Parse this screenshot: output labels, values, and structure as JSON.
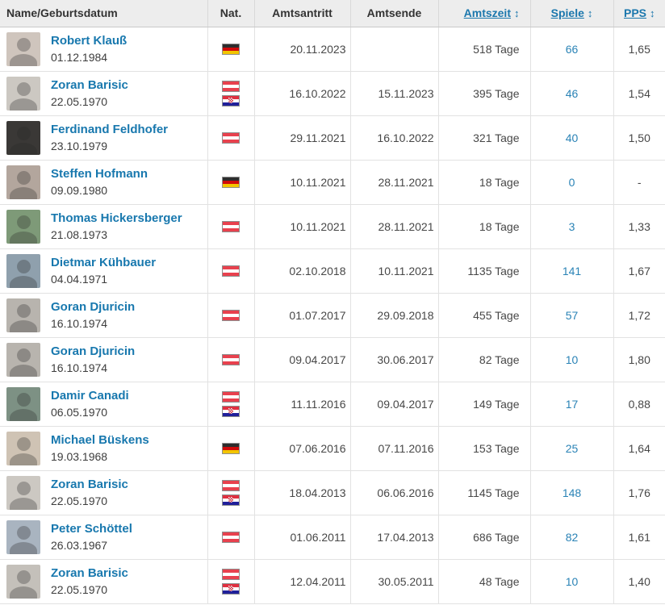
{
  "table": {
    "sort_icon": "↕",
    "columns": [
      {
        "key": "name",
        "label": "Name/Geburtsdatum",
        "sortable": false
      },
      {
        "key": "nat",
        "label": "Nat.",
        "sortable": false
      },
      {
        "key": "start",
        "label": "Amtsantritt",
        "sortable": false
      },
      {
        "key": "end",
        "label": "Amtsende",
        "sortable": false
      },
      {
        "key": "duration",
        "label": "Amtszeit",
        "sortable": true
      },
      {
        "key": "games",
        "label": "Spiele",
        "sortable": true
      },
      {
        "key": "pps",
        "label": "PPS",
        "sortable": true
      }
    ],
    "rows": [
      {
        "name": "Robert Klauß",
        "birthdate": "01.12.1984",
        "nationalities": [
          "germany"
        ],
        "start": "20.11.2023",
        "end": "",
        "duration": "518 Tage",
        "games": "66",
        "pps": "1,65",
        "photo_bg": "#cfc5bd"
      },
      {
        "name": "Zoran Barisic",
        "birthdate": "22.05.1970",
        "nationalities": [
          "austria",
          "croatia"
        ],
        "start": "16.10.2022",
        "end": "15.11.2023",
        "duration": "395 Tage",
        "games": "46",
        "pps": "1,54",
        "photo_bg": "#ccc8c2"
      },
      {
        "name": "Ferdinand Feldhofer",
        "birthdate": "23.10.1979",
        "nationalities": [
          "austria"
        ],
        "start": "29.11.2021",
        "end": "16.10.2022",
        "duration": "321 Tage",
        "games": "40",
        "pps": "1,50",
        "photo_bg": "#3a3836"
      },
      {
        "name": "Steffen Hofmann",
        "birthdate": "09.09.1980",
        "nationalities": [
          "germany"
        ],
        "start": "10.11.2021",
        "end": "28.11.2021",
        "duration": "18 Tage",
        "games": "0",
        "pps": "-",
        "photo_bg": "#b3a69d"
      },
      {
        "name": "Thomas Hickersberger",
        "birthdate": "21.08.1973",
        "nationalities": [
          "austria"
        ],
        "start": "10.11.2021",
        "end": "28.11.2021",
        "duration": "18 Tage",
        "games": "3",
        "pps": "1,33",
        "photo_bg": "#7e9a78"
      },
      {
        "name": "Dietmar Kühbauer",
        "birthdate": "04.04.1971",
        "nationalities": [
          "austria"
        ],
        "start": "02.10.2018",
        "end": "10.11.2021",
        "duration": "1135 Tage",
        "games": "141",
        "pps": "1,67",
        "photo_bg": "#8fa0ad"
      },
      {
        "name": "Goran Djuricin",
        "birthdate": "16.10.1974",
        "nationalities": [
          "austria"
        ],
        "start": "01.07.2017",
        "end": "29.09.2018",
        "duration": "455 Tage",
        "games": "57",
        "pps": "1,72",
        "photo_bg": "#b8b4ae"
      },
      {
        "name": "Goran Djuricin",
        "birthdate": "16.10.1974",
        "nationalities": [
          "austria"
        ],
        "start": "09.04.2017",
        "end": "30.06.2017",
        "duration": "82 Tage",
        "games": "10",
        "pps": "1,80",
        "photo_bg": "#b8b4ae"
      },
      {
        "name": "Damir Canadi",
        "birthdate": "06.05.1970",
        "nationalities": [
          "austria",
          "croatia"
        ],
        "start": "11.11.2016",
        "end": "09.04.2017",
        "duration": "149 Tage",
        "games": "17",
        "pps": "0,88",
        "photo_bg": "#7d9184"
      },
      {
        "name": "Michael Büskens",
        "birthdate": "19.03.1968",
        "nationalities": [
          "germany"
        ],
        "start": "07.06.2016",
        "end": "07.11.2016",
        "duration": "153 Tage",
        "games": "25",
        "pps": "1,64",
        "photo_bg": "#cfc3b4"
      },
      {
        "name": "Zoran Barisic",
        "birthdate": "22.05.1970",
        "nationalities": [
          "austria",
          "croatia"
        ],
        "start": "18.04.2013",
        "end": "06.06.2016",
        "duration": "1145 Tage",
        "games": "148",
        "pps": "1,76",
        "photo_bg": "#ccc8c2"
      },
      {
        "name": "Peter Schöttel",
        "birthdate": "26.03.1967",
        "nationalities": [
          "austria"
        ],
        "start": "01.06.2011",
        "end": "17.04.2013",
        "duration": "686 Tage",
        "games": "82",
        "pps": "1,61",
        "photo_bg": "#a9b4c0"
      },
      {
        "name": "Zoran Barisic",
        "birthdate": "22.05.1970",
        "nationalities": [
          "austria",
          "croatia"
        ],
        "start": "12.04.2011",
        "end": "30.05.2011",
        "duration": "48 Tage",
        "games": "10",
        "pps": "1,40",
        "photo_bg": "#c4c0ba"
      }
    ]
  },
  "colors": {
    "link_blue": "#1878ae",
    "games_blue": "#2a83b6",
    "header_bg": "#ededed",
    "row_border": "#e2e2e2",
    "text_gray": "#474747"
  }
}
